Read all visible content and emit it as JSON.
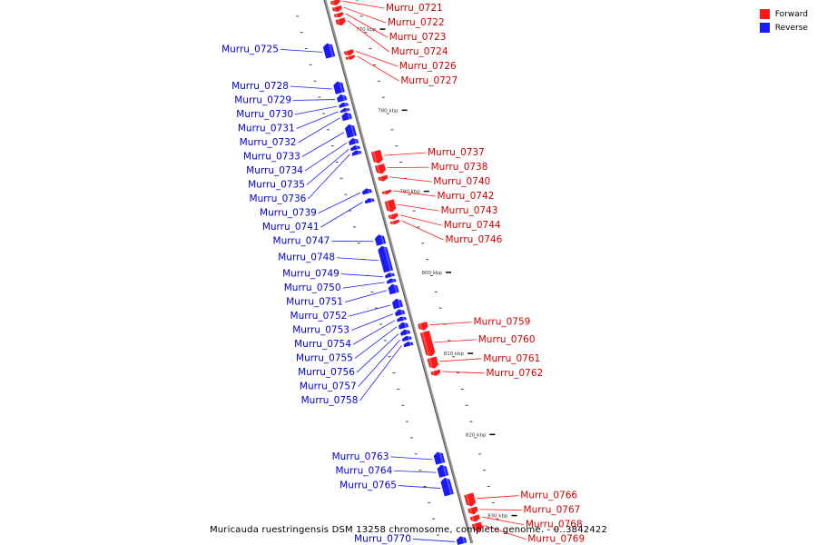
{
  "legend": {
    "forward_label": "Forward",
    "reverse_label": "Reverse"
  },
  "colors": {
    "forward": "#ff1a1a",
    "reverse": "#1a1aff",
    "axis": "#888888"
  },
  "caption": "Muricauda ruestringensis DSM 13258 chromosome, complete genome. - 0..3842422",
  "axis": {
    "min_kbp": 765,
    "max_kbp": 832
  },
  "ticks": [
    {
      "kbp": 770,
      "label": "770 kbp"
    },
    {
      "kbp": 780,
      "label": "780 kbp"
    },
    {
      "kbp": 790,
      "label": "790 kbp"
    },
    {
      "kbp": 800,
      "label": "800 kbp"
    },
    {
      "kbp": 810,
      "label": "810 kbp"
    },
    {
      "kbp": 820,
      "label": "820 kbp"
    },
    {
      "kbp": 830,
      "label": "830 kbp"
    }
  ],
  "genes": [
    {
      "id": "Murru_0721",
      "strand": "forward",
      "start_kbp": 765.3,
      "end_kbp": 766.0
    },
    {
      "id": "Murru_0722",
      "strand": "forward",
      "start_kbp": 766.1,
      "end_kbp": 766.8
    },
    {
      "id": "Murru_0723",
      "strand": "forward",
      "start_kbp": 766.9,
      "end_kbp": 767.5
    },
    {
      "id": "Murru_0724",
      "strand": "forward",
      "start_kbp": 767.6,
      "end_kbp": 768.5
    },
    {
      "id": "Murru_0725",
      "strand": "reverse",
      "start_kbp": 770.0,
      "end_kbp": 771.8
    },
    {
      "id": "Murru_0726",
      "strand": "forward",
      "start_kbp": 771.5,
      "end_kbp": 772.2
    },
    {
      "id": "Murru_0727",
      "strand": "forward",
      "start_kbp": 772.2,
      "end_kbp": 772.7
    },
    {
      "id": "Murru_0728",
      "strand": "reverse",
      "start_kbp": 774.7,
      "end_kbp": 776.2
    },
    {
      "id": "Murru_0729",
      "strand": "reverse",
      "start_kbp": 776.3,
      "end_kbp": 777.2
    },
    {
      "id": "Murru_0730",
      "strand": "reverse",
      "start_kbp": 777.3,
      "end_kbp": 777.9
    },
    {
      "id": "Murru_0731",
      "strand": "reverse",
      "start_kbp": 778.0,
      "end_kbp": 778.5
    },
    {
      "id": "Murru_0732",
      "strand": "reverse",
      "start_kbp": 778.5,
      "end_kbp": 779.5
    },
    {
      "id": "Murru_0733",
      "strand": "reverse",
      "start_kbp": 780.0,
      "end_kbp": 781.6
    },
    {
      "id": "Murru_0734",
      "strand": "reverse",
      "start_kbp": 781.7,
      "end_kbp": 782.5
    },
    {
      "id": "Murru_0735",
      "strand": "reverse",
      "start_kbp": 782.6,
      "end_kbp": 783.2
    },
    {
      "id": "Murru_0736",
      "strand": "reverse",
      "start_kbp": 783.2,
      "end_kbp": 783.8
    },
    {
      "id": "Murru_0737",
      "strand": "forward",
      "start_kbp": 783.9,
      "end_kbp": 785.5
    },
    {
      "id": "Murru_0738",
      "strand": "forward",
      "start_kbp": 785.6,
      "end_kbp": 786.8
    },
    {
      "id": "Murru_0739",
      "strand": "reverse",
      "start_kbp": 787.9,
      "end_kbp": 788.6
    },
    {
      "id": "Murru_0740",
      "strand": "forward",
      "start_kbp": 787.0,
      "end_kbp": 787.7
    },
    {
      "id": "Murru_0741",
      "strand": "reverse",
      "start_kbp": 789.1,
      "end_kbp": 789.7
    },
    {
      "id": "Murru_0742",
      "strand": "forward",
      "start_kbp": 788.8,
      "end_kbp": 789.3
    },
    {
      "id": "Murru_0743",
      "strand": "forward",
      "start_kbp": 790.0,
      "end_kbp": 791.5
    },
    {
      "id": "Murru_0744",
      "strand": "forward",
      "start_kbp": 791.7,
      "end_kbp": 792.4
    },
    {
      "id": "Murru_0746",
      "strand": "forward",
      "start_kbp": 792.5,
      "end_kbp": 793.0
    },
    {
      "id": "Murru_0747",
      "strand": "reverse",
      "start_kbp": 793.6,
      "end_kbp": 794.9
    },
    {
      "id": "Murru_0748",
      "strand": "reverse",
      "start_kbp": 795.0,
      "end_kbp": 798.2
    },
    {
      "id": "Murru_0749",
      "strand": "reverse",
      "start_kbp": 798.3,
      "end_kbp": 798.9
    },
    {
      "id": "Murru_0750",
      "strand": "reverse",
      "start_kbp": 799.0,
      "end_kbp": 799.6
    },
    {
      "id": "Murru_0751",
      "strand": "reverse",
      "start_kbp": 799.7,
      "end_kbp": 800.9
    },
    {
      "id": "Murru_0752",
      "strand": "reverse",
      "start_kbp": 801.5,
      "end_kbp": 802.7
    },
    {
      "id": "Murru_0753",
      "strand": "reverse",
      "start_kbp": 802.8,
      "end_kbp": 803.6
    },
    {
      "id": "Murru_0754",
      "strand": "reverse",
      "start_kbp": 803.7,
      "end_kbp": 804.3
    },
    {
      "id": "Murru_0755",
      "strand": "reverse",
      "start_kbp": 804.4,
      "end_kbp": 805.2
    },
    {
      "id": "Murru_0756",
      "strand": "reverse",
      "start_kbp": 805.3,
      "end_kbp": 806.0
    },
    {
      "id": "Murru_0757",
      "strand": "reverse",
      "start_kbp": 806.1,
      "end_kbp": 806.7
    },
    {
      "id": "Murru_0758",
      "strand": "reverse",
      "start_kbp": 806.8,
      "end_kbp": 807.4
    },
    {
      "id": "Murru_0759",
      "strand": "forward",
      "start_kbp": 805.1,
      "end_kbp": 806.1
    },
    {
      "id": "Murru_0760",
      "strand": "forward",
      "start_kbp": 806.2,
      "end_kbp": 809.3
    },
    {
      "id": "Murru_0761",
      "strand": "forward",
      "start_kbp": 809.4,
      "end_kbp": 810.8
    },
    {
      "id": "Murru_0762",
      "strand": "forward",
      "start_kbp": 811.0,
      "end_kbp": 811.7
    },
    {
      "id": "Murru_0763",
      "strand": "reverse",
      "start_kbp": 820.4,
      "end_kbp": 821.9
    },
    {
      "id": "Murru_0764",
      "strand": "reverse",
      "start_kbp": 822.0,
      "end_kbp": 823.5
    },
    {
      "id": "Murru_0765",
      "strand": "reverse",
      "start_kbp": 823.6,
      "end_kbp": 825.8
    },
    {
      "id": "Murru_0766",
      "strand": "forward",
      "start_kbp": 826.2,
      "end_kbp": 827.8
    },
    {
      "id": "Murru_0767",
      "strand": "forward",
      "start_kbp": 827.9,
      "end_kbp": 828.8
    },
    {
      "id": "Murru_0768",
      "strand": "forward",
      "start_kbp": 828.9,
      "end_kbp": 829.7
    },
    {
      "id": "Murru_0769",
      "strand": "forward",
      "start_kbp": 829.8,
      "end_kbp": 830.9
    },
    {
      "id": "Murru_0770",
      "strand": "reverse",
      "start_kbp": 830.8,
      "end_kbp": 831.8
    }
  ]
}
